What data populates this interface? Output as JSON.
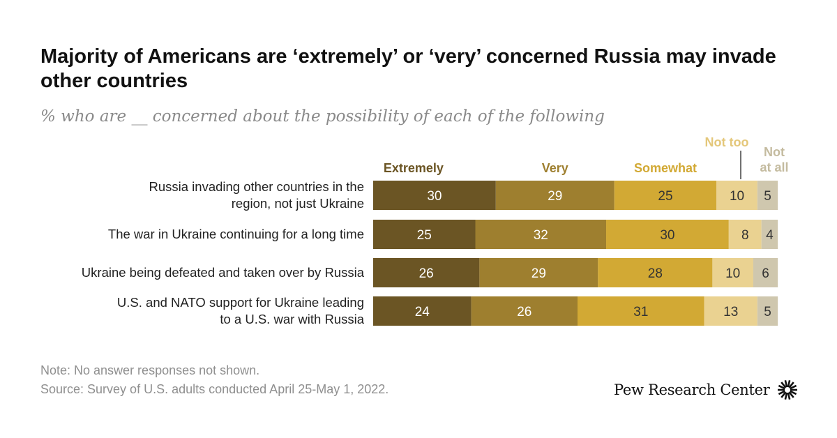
{
  "header": {
    "title": "Majority of Americans are ‘extremely’ or ‘very’ concerned Russia may invade other countries",
    "subtitle": "% who are __ concerned about the possibility of each of the following"
  },
  "chart_data": {
    "type": "bar",
    "orientation": "horizontal",
    "stacked": true,
    "title": "Majority of Americans are ‘extremely’ or ‘very’ concerned Russia may invade other countries",
    "subtitle": "% who are __ concerned about the possibility of each of the following",
    "xlim": [
      0,
      100
    ],
    "grid": false,
    "legend_placement": "top",
    "categories": [
      [
        "Russia invading other countries in the",
        "region, not just Ukraine"
      ],
      [
        "The war in Ukraine continuing for a long time"
      ],
      [
        "Ukraine being defeated and taken over by Russia"
      ],
      [
        "U.S. and NATO support for Ukraine leading",
        "to a U.S. war with Russia"
      ]
    ],
    "series": [
      {
        "name": "Extremely",
        "values": [
          30,
          25,
          26,
          24
        ],
        "color": "#6b5524",
        "label_color": "#6b5524",
        "value_color": "#ffffff"
      },
      {
        "name": "Very",
        "values": [
          29,
          32,
          29,
          26
        ],
        "color": "#9e7f2f",
        "label_color": "#9e7f2f",
        "value_color": "#ffffff"
      },
      {
        "name": "Somewhat",
        "values": [
          25,
          30,
          28,
          31
        ],
        "color": "#d2a934",
        "label_color": "#d2a934",
        "value_color": "#333333"
      },
      {
        "name": "Not too",
        "values": [
          10,
          8,
          10,
          13
        ],
        "color": "#ead291",
        "label_color": "#e4c77a",
        "value_color": "#333333"
      },
      {
        "name": "Not at all",
        "values": [
          5,
          4,
          6,
          5
        ],
        "color": "#cfc7ae",
        "label_color": "#c4bb9f",
        "value_color": "#333333"
      }
    ]
  },
  "footer": {
    "note": "Note: No answer responses not shown.",
    "source": "Source: Survey of U.S. adults conducted April 25-May 1, 2022.",
    "brand": "Pew Research Center"
  }
}
